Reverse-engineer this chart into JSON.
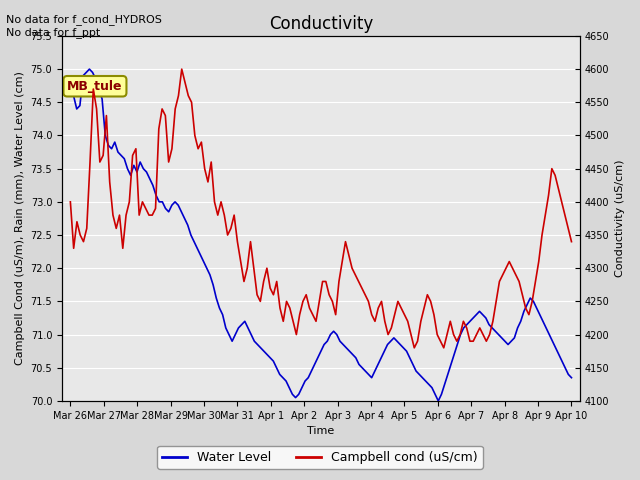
{
  "title": "Conductivity",
  "left_ylabel": "Campbell Cond (uS/m), Rain (mm), Water Level (cm)",
  "right_ylabel": "Conductivity (uS/cm)",
  "xlabel": "Time",
  "ylim_left": [
    70.0,
    75.5
  ],
  "ylim_right": [
    4100,
    4650
  ],
  "yticks_left": [
    70.0,
    70.5,
    71.0,
    71.5,
    72.0,
    72.5,
    73.0,
    73.5,
    74.0,
    74.5,
    75.0,
    75.5
  ],
  "yticks_right": [
    4100,
    4150,
    4200,
    4250,
    4300,
    4350,
    4400,
    4450,
    4500,
    4550,
    4600,
    4650
  ],
  "annotation_text": "No data for f_cond_HYDROS\nNo data for f_ppt",
  "site_label": "MB_tule",
  "background_color": "#e8e8e8",
  "grid_color": "#ffffff",
  "blue_color": "#0000cc",
  "red_color": "#cc0000",
  "legend_entries": [
    "Water Level",
    "Campbell cond (uS/cm)"
  ],
  "xtick_labels": [
    "Mar 26",
    "Mar 27",
    "Mar 28",
    "Mar 29",
    "Mar 30",
    "Mar 31",
    "Apr 1",
    "Apr 2",
    "Apr 3",
    "Apr 4",
    "Apr 5",
    "Apr 6",
    "Apr 7",
    "Apr 8",
    "Apr 9",
    "Apr 10"
  ],
  "water_level": [
    74.8,
    74.6,
    74.4,
    74.45,
    74.9,
    74.95,
    75.0,
    74.95,
    74.85,
    74.7,
    74.55,
    74.0,
    73.85,
    73.8,
    73.9,
    73.75,
    73.7,
    73.65,
    73.5,
    73.4,
    73.55,
    73.45,
    73.6,
    73.5,
    73.45,
    73.35,
    73.25,
    73.1,
    73.0,
    73.0,
    72.9,
    72.85,
    72.95,
    73.0,
    72.95,
    72.85,
    72.75,
    72.65,
    72.5,
    72.4,
    72.3,
    72.2,
    72.1,
    72.0,
    71.9,
    71.75,
    71.55,
    71.4,
    71.3,
    71.1,
    71.0,
    70.9,
    71.0,
    71.1,
    71.15,
    71.2,
    71.1,
    71.0,
    70.9,
    70.85,
    70.8,
    70.75,
    70.7,
    70.65,
    70.6,
    70.5,
    70.4,
    70.35,
    70.3,
    70.2,
    70.1,
    70.05,
    70.1,
    70.2,
    70.3,
    70.35,
    70.45,
    70.55,
    70.65,
    70.75,
    70.85,
    70.9,
    71.0,
    71.05,
    71.0,
    70.9,
    70.85,
    70.8,
    70.75,
    70.7,
    70.65,
    70.55,
    70.5,
    70.45,
    70.4,
    70.35,
    70.45,
    70.55,
    70.65,
    70.75,
    70.85,
    70.9,
    70.95,
    70.9,
    70.85,
    70.8,
    70.75,
    70.65,
    70.55,
    70.45,
    70.4,
    70.35,
    70.3,
    70.25,
    70.2,
    70.1,
    70.0,
    70.1,
    70.25,
    70.4,
    70.55,
    70.7,
    70.85,
    71.0,
    71.1,
    71.15,
    71.2,
    71.25,
    71.3,
    71.35,
    71.3,
    71.25,
    71.15,
    71.1,
    71.05,
    71.0,
    70.95,
    70.9,
    70.85,
    70.9,
    70.95,
    71.1,
    71.2,
    71.35,
    71.45,
    71.55,
    71.5,
    71.4,
    71.3,
    71.2,
    71.1,
    71.0,
    70.9,
    70.8,
    70.7,
    70.6,
    70.5,
    70.4,
    70.35
  ],
  "campbell_cond": [
    4400,
    4330,
    4370,
    4350,
    4340,
    4360,
    4460,
    4570,
    4540,
    4460,
    4470,
    4530,
    4430,
    4380,
    4360,
    4380,
    4330,
    4380,
    4400,
    4470,
    4480,
    4380,
    4400,
    4390,
    4380,
    4380,
    4390,
    4510,
    4540,
    4530,
    4460,
    4480,
    4540,
    4560,
    4600,
    4580,
    4560,
    4550,
    4500,
    4480,
    4490,
    4450,
    4430,
    4460,
    4400,
    4380,
    4400,
    4380,
    4350,
    4360,
    4380,
    4340,
    4310,
    4280,
    4300,
    4340,
    4300,
    4260,
    4250,
    4280,
    4300,
    4270,
    4260,
    4280,
    4240,
    4220,
    4250,
    4240,
    4220,
    4200,
    4230,
    4250,
    4260,
    4240,
    4230,
    4220,
    4250,
    4280,
    4280,
    4260,
    4250,
    4230,
    4280,
    4310,
    4340,
    4320,
    4300,
    4290,
    4280,
    4270,
    4260,
    4250,
    4230,
    4220,
    4240,
    4250,
    4220,
    4200,
    4210,
    4230,
    4250,
    4240,
    4230,
    4220,
    4200,
    4180,
    4190,
    4220,
    4240,
    4260,
    4250,
    4230,
    4200,
    4190,
    4180,
    4200,
    4220,
    4200,
    4190,
    4200,
    4220,
    4210,
    4190,
    4190,
    4200,
    4210,
    4200,
    4190,
    4200,
    4220,
    4250,
    4280,
    4290,
    4300,
    4310,
    4300,
    4290,
    4280,
    4260,
    4240,
    4230,
    4250,
    4280,
    4310,
    4350,
    4380,
    4410,
    4450,
    4440,
    4420,
    4400,
    4380,
    4360,
    4340
  ]
}
